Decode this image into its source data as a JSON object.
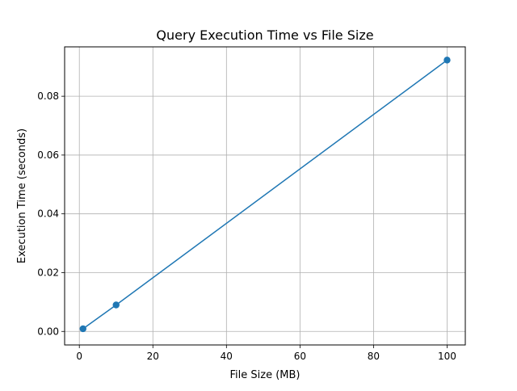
{
  "chart_data": {
    "type": "line",
    "title": "Query Execution Time vs File Size",
    "xlabel": "File Size (MB)",
    "ylabel": "Execution Time (seconds)",
    "xlim": [
      -4.0,
      104.95
    ],
    "ylim": [
      -0.0046,
      0.0968
    ],
    "xticks": [
      0,
      20,
      40,
      60,
      80,
      100
    ],
    "xtick_labels": [
      "0",
      "20",
      "40",
      "60",
      "80",
      "100"
    ],
    "yticks": [
      0.0,
      0.02,
      0.04,
      0.06,
      0.08
    ],
    "ytick_labels": [
      "0.00",
      "0.02",
      "0.04",
      "0.06",
      "0.08"
    ],
    "grid": true,
    "series": [
      {
        "x": [
          1,
          10,
          100
        ],
        "y": [
          0.0009,
          0.009,
          0.0923
        ],
        "color": "#1f77b4",
        "marker": "circle"
      }
    ]
  }
}
